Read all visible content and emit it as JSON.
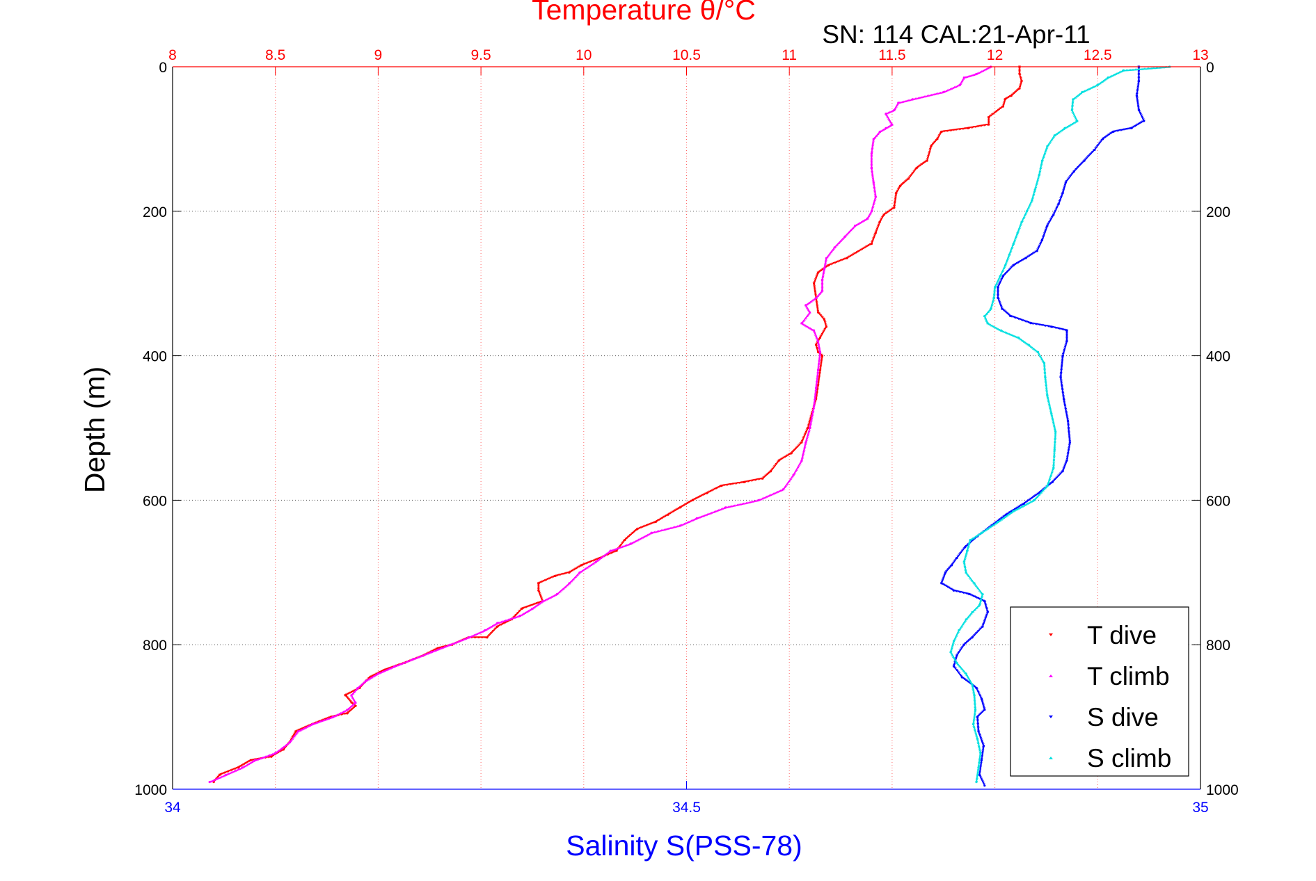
{
  "chart_data": {
    "type": "scatter",
    "title": "Temperature θ/°C",
    "annotation": "SN: 114  CAL:21-Apr-11",
    "ylabel": "Depth (m)",
    "xlabel": "Salinity S(PSS-78)",
    "temperature_axis": {
      "label": "Temperature θ/°C",
      "range": [
        8,
        13
      ],
      "ticks": [
        "8",
        "8.5",
        "9",
        "9.5",
        "10",
        "10.5",
        "11",
        "11.5",
        "12",
        "12.5",
        "13"
      ],
      "color": "#ff0000"
    },
    "salinity_axis": {
      "label": "Salinity S(PSS-78)",
      "range": [
        34,
        35
      ],
      "ticks": [
        "34",
        "34.5",
        "35"
      ],
      "color": "#0000ff"
    },
    "depth_axis": {
      "range": [
        0,
        1000
      ],
      "reversed": true,
      "ticks": [
        "0",
        "200",
        "400",
        "600",
        "800",
        "1000"
      ]
    },
    "grid": true,
    "legend_position": "bottom-right",
    "series": [
      {
        "name": "T dive",
        "axis": "temperature",
        "color": "#ff0000",
        "marker": "triangle-down",
        "points": [
          [
            12.12,
            0
          ],
          [
            12.12,
            10
          ],
          [
            12.13,
            20
          ],
          [
            12.12,
            30
          ],
          [
            12.08,
            40
          ],
          [
            12.05,
            45
          ],
          [
            12.04,
            55
          ],
          [
            11.97,
            70
          ],
          [
            11.97,
            80
          ],
          [
            11.87,
            85
          ],
          [
            11.74,
            90
          ],
          [
            11.72,
            100
          ],
          [
            11.69,
            110
          ],
          [
            11.67,
            130
          ],
          [
            11.62,
            140
          ],
          [
            11.58,
            155
          ],
          [
            11.54,
            165
          ],
          [
            11.52,
            175
          ],
          [
            11.51,
            195
          ],
          [
            11.46,
            205
          ],
          [
            11.44,
            215
          ],
          [
            11.42,
            230
          ],
          [
            11.4,
            245
          ],
          [
            11.28,
            265
          ],
          [
            11.19,
            275
          ],
          [
            11.14,
            285
          ],
          [
            11.12,
            300
          ],
          [
            11.13,
            320
          ],
          [
            11.14,
            340
          ],
          [
            11.17,
            350
          ],
          [
            11.18,
            360
          ],
          [
            11.15,
            375
          ],
          [
            11.13,
            385
          ],
          [
            11.14,
            395
          ],
          [
            11.16,
            400
          ],
          [
            11.15,
            420
          ],
          [
            11.14,
            440
          ],
          [
            11.13,
            460
          ],
          [
            11.11,
            480
          ],
          [
            11.09,
            500
          ],
          [
            11.06,
            520
          ],
          [
            11.01,
            535
          ],
          [
            10.95,
            545
          ],
          [
            10.91,
            560
          ],
          [
            10.87,
            570
          ],
          [
            10.78,
            575
          ],
          [
            10.67,
            580
          ],
          [
            10.6,
            590
          ],
          [
            10.53,
            600
          ],
          [
            10.47,
            610
          ],
          [
            10.41,
            620
          ],
          [
            10.35,
            630
          ],
          [
            10.26,
            640
          ],
          [
            10.2,
            655
          ],
          [
            10.16,
            670
          ],
          [
            10.08,
            680
          ],
          [
            9.99,
            690
          ],
          [
            9.93,
            700
          ],
          [
            9.86,
            705
          ],
          [
            9.78,
            715
          ],
          [
            9.78,
            725
          ],
          [
            9.8,
            740
          ],
          [
            9.7,
            750
          ],
          [
            9.65,
            765
          ],
          [
            9.58,
            775
          ],
          [
            9.53,
            790
          ],
          [
            9.44,
            790
          ],
          [
            9.36,
            800
          ],
          [
            9.29,
            805
          ],
          [
            9.22,
            815
          ],
          [
            9.13,
            825
          ],
          [
            9.03,
            835
          ],
          [
            8.96,
            845
          ],
          [
            8.91,
            860
          ],
          [
            8.84,
            870
          ],
          [
            8.87,
            880
          ],
          [
            8.89,
            885
          ],
          [
            8.85,
            895
          ],
          [
            8.77,
            900
          ],
          [
            8.68,
            910
          ],
          [
            8.6,
            920
          ],
          [
            8.57,
            935
          ],
          [
            8.54,
            945
          ],
          [
            8.48,
            955
          ],
          [
            8.38,
            960
          ],
          [
            8.32,
            970
          ],
          [
            8.23,
            980
          ],
          [
            8.2,
            990
          ]
        ]
      },
      {
        "name": "T climb",
        "axis": "temperature",
        "color": "#ff00ff",
        "marker": "triangle-up",
        "points": [
          [
            11.98,
            0
          ],
          [
            11.91,
            10
          ],
          [
            11.85,
            15
          ],
          [
            11.83,
            25
          ],
          [
            11.75,
            35
          ],
          [
            11.6,
            45
          ],
          [
            11.53,
            50
          ],
          [
            11.51,
            60
          ],
          [
            11.47,
            65
          ],
          [
            11.5,
            80
          ],
          [
            11.47,
            85
          ],
          [
            11.44,
            90
          ],
          [
            11.41,
            100
          ],
          [
            11.4,
            120
          ],
          [
            11.4,
            140
          ],
          [
            11.41,
            160
          ],
          [
            11.42,
            180
          ],
          [
            11.4,
            200
          ],
          [
            11.38,
            210
          ],
          [
            11.32,
            220
          ],
          [
            11.27,
            235
          ],
          [
            11.22,
            250
          ],
          [
            11.18,
            265
          ],
          [
            11.17,
            280
          ],
          [
            11.16,
            295
          ],
          [
            11.16,
            310
          ],
          [
            11.13,
            320
          ],
          [
            11.08,
            330
          ],
          [
            11.1,
            340
          ],
          [
            11.06,
            355
          ],
          [
            11.12,
            365
          ],
          [
            11.14,
            380
          ],
          [
            11.15,
            395
          ],
          [
            11.14,
            420
          ],
          [
            11.13,
            445
          ],
          [
            11.12,
            470
          ],
          [
            11.1,
            500
          ],
          [
            11.08,
            520
          ],
          [
            11.06,
            545
          ],
          [
            11.02,
            565
          ],
          [
            10.97,
            585
          ],
          [
            10.85,
            600
          ],
          [
            10.69,
            610
          ],
          [
            10.55,
            625
          ],
          [
            10.47,
            635
          ],
          [
            10.33,
            645
          ],
          [
            10.23,
            660
          ],
          [
            10.13,
            670
          ],
          [
            10.06,
            685
          ],
          [
            9.98,
            700
          ],
          [
            9.93,
            715
          ],
          [
            9.87,
            730
          ],
          [
            9.8,
            740
          ],
          [
            9.75,
            750
          ],
          [
            9.69,
            760
          ],
          [
            9.58,
            770
          ],
          [
            9.52,
            780
          ],
          [
            9.44,
            790
          ],
          [
            9.35,
            800
          ],
          [
            9.26,
            810
          ],
          [
            9.17,
            820
          ],
          [
            9.08,
            830
          ],
          [
            9.0,
            840
          ],
          [
            8.94,
            850
          ],
          [
            8.9,
            860
          ],
          [
            8.87,
            870
          ],
          [
            8.89,
            880
          ],
          [
            8.85,
            890
          ],
          [
            8.78,
            900
          ],
          [
            8.68,
            910
          ],
          [
            8.61,
            920
          ],
          [
            8.57,
            935
          ],
          [
            8.5,
            950
          ],
          [
            8.4,
            960
          ],
          [
            8.34,
            970
          ],
          [
            8.26,
            980
          ],
          [
            8.18,
            990
          ]
        ]
      },
      {
        "name": "S dive",
        "axis": "salinity",
        "color": "#0000ff",
        "marker": "triangle-down",
        "points": [
          [
            34.94,
            0
          ],
          [
            34.94,
            20
          ],
          [
            34.938,
            40
          ],
          [
            34.94,
            60
          ],
          [
            34.945,
            75
          ],
          [
            34.933,
            85
          ],
          [
            34.915,
            90
          ],
          [
            34.905,
            100
          ],
          [
            34.897,
            115
          ],
          [
            34.887,
            130
          ],
          [
            34.877,
            145
          ],
          [
            34.869,
            160
          ],
          [
            34.866,
            175
          ],
          [
            34.862,
            190
          ],
          [
            34.857,
            205
          ],
          [
            34.851,
            220
          ],
          [
            34.846,
            240
          ],
          [
            34.841,
            255
          ],
          [
            34.83,
            265
          ],
          [
            34.818,
            275
          ],
          [
            34.808,
            290
          ],
          [
            34.803,
            305
          ],
          [
            34.803,
            320
          ],
          [
            34.807,
            335
          ],
          [
            34.815,
            345
          ],
          [
            34.835,
            355
          ],
          [
            34.855,
            360
          ],
          [
            34.87,
            365
          ],
          [
            34.87,
            380
          ],
          [
            34.866,
            400
          ],
          [
            34.864,
            430
          ],
          [
            34.867,
            460
          ],
          [
            34.871,
            490
          ],
          [
            34.873,
            520
          ],
          [
            34.87,
            545
          ],
          [
            34.866,
            560
          ],
          [
            34.856,
            575
          ],
          [
            34.843,
            590
          ],
          [
            34.828,
            605
          ],
          [
            34.811,
            620
          ],
          [
            34.797,
            635
          ],
          [
            34.783,
            650
          ],
          [
            34.771,
            665
          ],
          [
            34.763,
            680
          ],
          [
            34.758,
            690
          ],
          [
            34.752,
            700
          ],
          [
            34.748,
            715
          ],
          [
            34.76,
            725
          ],
          [
            34.775,
            730
          ],
          [
            34.79,
            740
          ],
          [
            34.793,
            755
          ],
          [
            34.788,
            775
          ],
          [
            34.778,
            790
          ],
          [
            34.77,
            800
          ],
          [
            34.763,
            815
          ],
          [
            34.76,
            830
          ],
          [
            34.768,
            845
          ],
          [
            34.782,
            860
          ],
          [
            34.787,
            875
          ],
          [
            34.79,
            890
          ],
          [
            34.783,
            900
          ],
          [
            34.784,
            920
          ],
          [
            34.789,
            940
          ],
          [
            34.787,
            960
          ],
          [
            34.785,
            980
          ],
          [
            34.79,
            995
          ]
        ]
      },
      {
        "name": "S climb",
        "axis": "salinity",
        "color": "#00e0e0",
        "marker": "triangle-up",
        "points": [
          [
            34.97,
            0
          ],
          [
            34.925,
            5
          ],
          [
            34.91,
            15
          ],
          [
            34.9,
            25
          ],
          [
            34.885,
            35
          ],
          [
            34.876,
            45
          ],
          [
            34.875,
            60
          ],
          [
            34.88,
            75
          ],
          [
            34.868,
            85
          ],
          [
            34.858,
            95
          ],
          [
            34.851,
            110
          ],
          [
            34.846,
            130
          ],
          [
            34.843,
            150
          ],
          [
            34.839,
            170
          ],
          [
            34.836,
            185
          ],
          [
            34.831,
            200
          ],
          [
            34.826,
            215
          ],
          [
            34.822,
            230
          ],
          [
            34.818,
            245
          ],
          [
            34.814,
            260
          ],
          [
            34.81,
            275
          ],
          [
            34.805,
            290
          ],
          [
            34.8,
            305
          ],
          [
            34.799,
            320
          ],
          [
            34.796,
            335
          ],
          [
            34.79,
            345
          ],
          [
            34.793,
            355
          ],
          [
            34.806,
            365
          ],
          [
            34.823,
            375
          ],
          [
            34.833,
            385
          ],
          [
            34.842,
            395
          ],
          [
            34.848,
            410
          ],
          [
            34.849,
            430
          ],
          [
            34.851,
            455
          ],
          [
            34.855,
            480
          ],
          [
            34.859,
            505
          ],
          [
            34.858,
            530
          ],
          [
            34.857,
            555
          ],
          [
            34.851,
            580
          ],
          [
            34.838,
            600
          ],
          [
            34.818,
            615
          ],
          [
            34.803,
            630
          ],
          [
            34.787,
            645
          ],
          [
            34.776,
            655
          ],
          [
            34.773,
            670
          ],
          [
            34.77,
            685
          ],
          [
            34.772,
            700
          ],
          [
            34.78,
            715
          ],
          [
            34.788,
            730
          ],
          [
            34.785,
            745
          ],
          [
            34.778,
            755
          ],
          [
            34.772,
            765
          ],
          [
            34.765,
            780
          ],
          [
            34.76,
            795
          ],
          [
            34.757,
            810
          ],
          [
            34.763,
            825
          ],
          [
            34.772,
            840
          ],
          [
            34.778,
            855
          ],
          [
            34.78,
            870
          ],
          [
            34.781,
            890
          ],
          [
            34.779,
            910
          ],
          [
            34.783,
            930
          ],
          [
            34.786,
            950
          ],
          [
            34.784,
            970
          ],
          [
            34.782,
            990
          ]
        ]
      }
    ]
  }
}
